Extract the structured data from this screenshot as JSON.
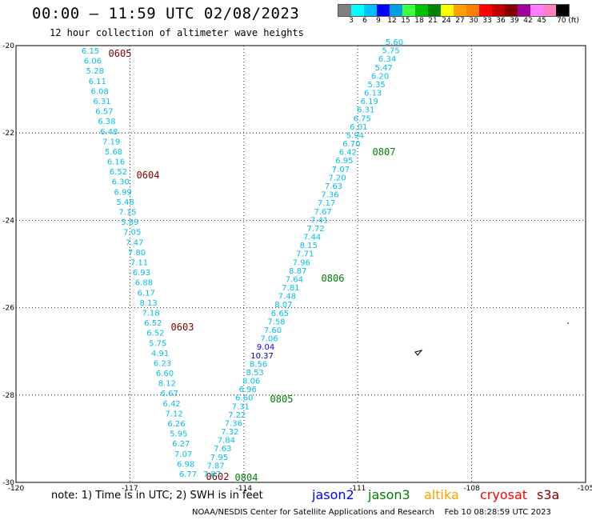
{
  "header": {
    "title": "00:00 – 11:59 UTC 02/08/2023",
    "subtitle": "12 hour collection of altimeter wave heights"
  },
  "colorbar": {
    "colors": [
      "#808080",
      "#00ffff",
      "#00c0ff",
      "#0000ff",
      "#00a0e0",
      "#40ff40",
      "#00c000",
      "#008000",
      "#ffff00",
      "#ffa000",
      "#ff8000",
      "#ff0000",
      "#c00000",
      "#800000",
      "#a000a0",
      "#ff80ff",
      "#ff80c0",
      "#000000"
    ],
    "ticks": [
      "3",
      "6",
      "9",
      "12",
      "15",
      "18",
      "21",
      "24",
      "27",
      "30",
      "33",
      "36",
      "39",
      "42",
      "45",
      "70 (ft)"
    ]
  },
  "map": {
    "lat_labels": [
      "-20",
      "-22",
      "-24",
      "-26",
      "-28",
      "-30"
    ],
    "lon_labels": [
      "-120",
      "-117",
      "-114",
      "-111",
      "-108",
      "-105"
    ],
    "lat_values": [
      -20,
      -22,
      -24,
      -26,
      -28,
      -30
    ],
    "lon_values": [
      -120,
      -117,
      -114,
      -111,
      -108,
      -105
    ]
  },
  "chart_data": {
    "type": "map-track-labels",
    "tracks": [
      {
        "satellite": "cryosat",
        "color": "#00bfe8",
        "values": [
          "6.15",
          "6.06",
          "5.28",
          "6.11",
          "6.08",
          "6.31",
          "6.57",
          "6.38",
          "6.48",
          "7.19",
          "5.68",
          "6.16",
          "6.52",
          "6.30",
          "6.99",
          "5.48",
          "7.15",
          "5.89",
          "7.05",
          "7.47",
          "7.80",
          "7.11",
          "6.93",
          "6.88",
          "6.17",
          "8.13",
          "7.18",
          "6.52",
          "6.52",
          "5.75",
          "4.91",
          "6.23",
          "6.60",
          "8.12",
          "6.67",
          "6.42",
          "7.12",
          "6.26",
          "5.95",
          "6.27",
          "7.07",
          "6.98",
          "6.77"
        ],
        "time_marks": [
          "0605",
          "0604",
          "0603",
          "0602"
        ]
      },
      {
        "satellite": "jason3",
        "color": "#00bfe8",
        "values": [
          "5.60",
          "5.75",
          "6.34",
          "5.47",
          "6.20",
          "5.35",
          "6.13",
          "6.19",
          "6.31",
          "6.75",
          "6.01",
          "5.94",
          "6.70",
          "6.42",
          "6.95",
          "7.07",
          "7.20",
          "7.63",
          "7.36",
          "7.17",
          "7.67",
          "7.41",
          "7.72",
          "7.44",
          "8.15",
          "7.71",
          "7.96",
          "8.87",
          "7.64",
          "7.81",
          "7.48",
          "8.07",
          "6.65",
          "7.58",
          "7.60",
          "7.06",
          "9.04",
          "10.37",
          "8.56",
          "8.53",
          "8.06",
          "6.96",
          "6.60",
          "7.31",
          "7.22",
          "7.36",
          "7.32",
          "7.84",
          "7.63",
          "7.95",
          "7.87",
          "7.87"
        ],
        "time_marks": [
          "0807",
          "0806",
          "0805",
          "0804"
        ]
      }
    ]
  },
  "note": "note: 1) Time is in UTC; 2) SWH is in feet",
  "legend": {
    "jason2": "jason2",
    "jason3": "jason3",
    "altika": "altika",
    "cryosat": "cryosat",
    "s3a": "s3a",
    "colors": {
      "jason2": "#0000ff",
      "jason3": "#008000",
      "altika": "#ffa000",
      "cryosat": "#ff0000",
      "s3a": "#800000"
    }
  },
  "footer": {
    "credit": "NOAA/NESDIS Center for Satellite Applications and Research",
    "timestamp": "Feb 10 08:28:59 UTC 2023"
  }
}
